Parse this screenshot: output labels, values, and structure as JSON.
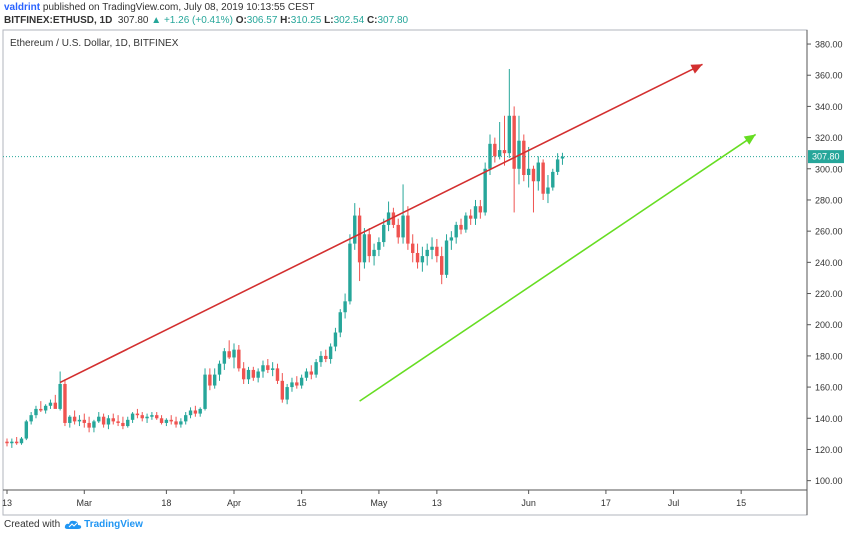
{
  "header": {
    "author": "valdrint",
    "published_text": "published on TradingView.com, July 08, 2019 10:13:55 CEST",
    "symbol": "BITFINEX:ETHUSD, 1D",
    "last": "307.80",
    "change": "+1.26 (+0.41%)",
    "o_label": "O:",
    "o": "306.57",
    "h_label": "H:",
    "h": "310.25",
    "l_label": "L:",
    "l": "302.54",
    "c_label": "C:",
    "c": "307.80"
  },
  "footer": {
    "created_with": "Created with",
    "brand": "TradingView"
  },
  "colors": {
    "up": "#26a69a",
    "down": "#ef5350",
    "resistance": "#d32f2f",
    "support": "#66dd22",
    "price_line": "#26a69a"
  },
  "chart_data": {
    "type": "candlestick",
    "title": "Ethereum / U.S. Dollar, 1D, BITFINEX",
    "y_ticks": [
      "100.00",
      "120.00",
      "140.00",
      "160.00",
      "180.00",
      "200.00",
      "220.00",
      "240.00",
      "260.00",
      "280.00",
      "300.00",
      "320.00",
      "340.00",
      "360.00",
      "380.00"
    ],
    "ylim": [
      94,
      389
    ],
    "x_ticks": [
      {
        "label": "13",
        "day": 0
      },
      {
        "label": "Mar",
        "day": 16
      },
      {
        "label": "18",
        "day": 33
      },
      {
        "label": "Apr",
        "day": 47
      },
      {
        "label": "15",
        "day": 61
      },
      {
        "label": "May",
        "day": 77
      },
      {
        "label": "13",
        "day": 89
      },
      {
        "label": "Jun",
        "day": 108
      },
      {
        "label": "17",
        "day": 124
      },
      {
        "label": "Jul",
        "day": 138
      },
      {
        "label": "15",
        "day": 152
      }
    ],
    "last_price": 307.8,
    "last_price_label": "307.80",
    "candles": [
      [
        125,
        127,
        122,
        124
      ],
      [
        124,
        127,
        121,
        125
      ],
      [
        125,
        128,
        123,
        124
      ],
      [
        124,
        128,
        123,
        127
      ],
      [
        127,
        139,
        126,
        138
      ],
      [
        138,
        144,
        136,
        142
      ],
      [
        142,
        148,
        140,
        146
      ],
      [
        146,
        151,
        144,
        145
      ],
      [
        145,
        149,
        143,
        148
      ],
      [
        148,
        152,
        146,
        150
      ],
      [
        150,
        155,
        147,
        146
      ],
      [
        146,
        170,
        145,
        162
      ],
      [
        162,
        165,
        135,
        137
      ],
      [
        137,
        142,
        134,
        141
      ],
      [
        141,
        145,
        136,
        138
      ],
      [
        138,
        142,
        135,
        139
      ],
      [
        139,
        143,
        134,
        137
      ],
      [
        137,
        141,
        131,
        134
      ],
      [
        134,
        139,
        131,
        138
      ],
      [
        138,
        144,
        137,
        141
      ],
      [
        141,
        143,
        134,
        136
      ],
      [
        136,
        142,
        133,
        140
      ],
      [
        140,
        143,
        136,
        138
      ],
      [
        138,
        142,
        135,
        137
      ],
      [
        137,
        141,
        133,
        135
      ],
      [
        135,
        141,
        134,
        139
      ],
      [
        139,
        144,
        137,
        143
      ],
      [
        143,
        146,
        140,
        142
      ],
      [
        142,
        144,
        138,
        140
      ],
      [
        140,
        143,
        137,
        141
      ],
      [
        141,
        144,
        139,
        142
      ],
      [
        142,
        144,
        139,
        140
      ],
      [
        140,
        142,
        136,
        137
      ],
      [
        137,
        140,
        135,
        139
      ],
      [
        139,
        142,
        136,
        138
      ],
      [
        138,
        141,
        134,
        136
      ],
      [
        136,
        140,
        134,
        138
      ],
      [
        138,
        144,
        136,
        142
      ],
      [
        142,
        147,
        140,
        145
      ],
      [
        145,
        148,
        141,
        143
      ],
      [
        143,
        147,
        141,
        146
      ],
      [
        146,
        172,
        145,
        168
      ],
      [
        168,
        172,
        158,
        161
      ],
      [
        161,
        172,
        159,
        168
      ],
      [
        168,
        177,
        164,
        175
      ],
      [
        175,
        185,
        171,
        183
      ],
      [
        183,
        190,
        178,
        179
      ],
      [
        179,
        188,
        172,
        184
      ],
      [
        184,
        187,
        170,
        172
      ],
      [
        172,
        176,
        162,
        165
      ],
      [
        165,
        173,
        162,
        171
      ],
      [
        171,
        173,
        164,
        166
      ],
      [
        166,
        172,
        163,
        170
      ],
      [
        170,
        177,
        166,
        174
      ],
      [
        174,
        178,
        169,
        171
      ],
      [
        171,
        176,
        167,
        172
      ],
      [
        172,
        175,
        162,
        164
      ],
      [
        164,
        169,
        150,
        152
      ],
      [
        152,
        162,
        149,
        160
      ],
      [
        160,
        166,
        157,
        163
      ],
      [
        163,
        167,
        159,
        161
      ],
      [
        161,
        168,
        159,
        166
      ],
      [
        166,
        172,
        164,
        170
      ],
      [
        170,
        174,
        165,
        168
      ],
      [
        168,
        178,
        166,
        176
      ],
      [
        176,
        183,
        173,
        180
      ],
      [
        180,
        184,
        176,
        178
      ],
      [
        178,
        188,
        175,
        186
      ],
      [
        186,
        198,
        183,
        195
      ],
      [
        195,
        210,
        192,
        208
      ],
      [
        208,
        220,
        204,
        215
      ],
      [
        215,
        258,
        213,
        252
      ],
      [
        252,
        278,
        248,
        270
      ],
      [
        270,
        275,
        228,
        240
      ],
      [
        240,
        262,
        236,
        258
      ],
      [
        258,
        262,
        240,
        244
      ],
      [
        244,
        252,
        238,
        248
      ],
      [
        248,
        256,
        244,
        253
      ],
      [
        253,
        268,
        250,
        264
      ],
      [
        264,
        279,
        260,
        272
      ],
      [
        272,
        275,
        262,
        264
      ],
      [
        264,
        268,
        252,
        256
      ],
      [
        256,
        290,
        252,
        270
      ],
      [
        270,
        276,
        248,
        252
      ],
      [
        252,
        258,
        240,
        246
      ],
      [
        246,
        252,
        236,
        240
      ],
      [
        240,
        250,
        234,
        244
      ],
      [
        244,
        252,
        238,
        248
      ],
      [
        248,
        256,
        242,
        250
      ],
      [
        250,
        255,
        240,
        244
      ],
      [
        244,
        250,
        226,
        232
      ],
      [
        232,
        258,
        230,
        254
      ],
      [
        254,
        260,
        248,
        256
      ],
      [
        256,
        266,
        252,
        264
      ],
      [
        264,
        268,
        258,
        261
      ],
      [
        261,
        272,
        259,
        270
      ],
      [
        270,
        274,
        264,
        268
      ],
      [
        268,
        280,
        264,
        276
      ],
      [
        276,
        280,
        268,
        272
      ],
      [
        272,
        304,
        270,
        300
      ],
      [
        300,
        322,
        296,
        316
      ],
      [
        316,
        320,
        304,
        308
      ],
      [
        308,
        330,
        306,
        312
      ],
      [
        312,
        334,
        302,
        310
      ],
      [
        310,
        364,
        307,
        334
      ],
      [
        334,
        340,
        272,
        300
      ],
      [
        300,
        334,
        290,
        318
      ],
      [
        318,
        322,
        292,
        296
      ],
      [
        296,
        314,
        288,
        300
      ],
      [
        300,
        302,
        272,
        292
      ],
      [
        292,
        308,
        286,
        304
      ],
      [
        304,
        306,
        280,
        284
      ],
      [
        284,
        296,
        278,
        288
      ],
      [
        288,
        300,
        286,
        298
      ],
      [
        298,
        310,
        296,
        306
      ],
      [
        306.57,
        310.25,
        302.54,
        307.8
      ]
    ],
    "resistance_line": {
      "from": [
        11,
        163
      ],
      "to": [
        144,
        367
      ]
    },
    "support_line": {
      "from": [
        73,
        151
      ],
      "to": [
        155,
        322
      ]
    }
  }
}
